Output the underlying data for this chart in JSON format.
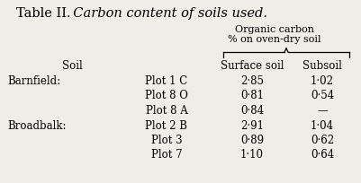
{
  "title_plain": "Table II.",
  "title_italic": "  Carbon content of soils used.",
  "bg_color": "#eeede8",
  "header_line1": "Organic carbon",
  "header_line2": "% on oven-dry soil",
  "col_headers": [
    "Surface soil",
    "Subsoil"
  ],
  "row_label_col": "Soil",
  "groups": [
    {
      "group_label": "Barnfield:",
      "rows": [
        {
          "plot": "Plot 1 C",
          "surface": "2·85",
          "subsoil": "1·02"
        },
        {
          "plot": "Plot 8 O",
          "surface": "0·81",
          "subsoil": "0·54"
        },
        {
          "plot": "Plot 8 A",
          "surface": "0·84",
          "subsoil": "—"
        }
      ]
    },
    {
      "group_label": "Broadbalk:",
      "rows": [
        {
          "plot": "Plot 2 B",
          "surface": "2·91",
          "subsoil": "1·04"
        },
        {
          "plot": "Plot 3",
          "surface": "0·89",
          "subsoil": "0·62"
        },
        {
          "plot": "Plot 7",
          "surface": "1·10",
          "subsoil": "0·64"
        }
      ]
    }
  ],
  "figsize": [
    4.02,
    2.04
  ],
  "dpi": 100
}
